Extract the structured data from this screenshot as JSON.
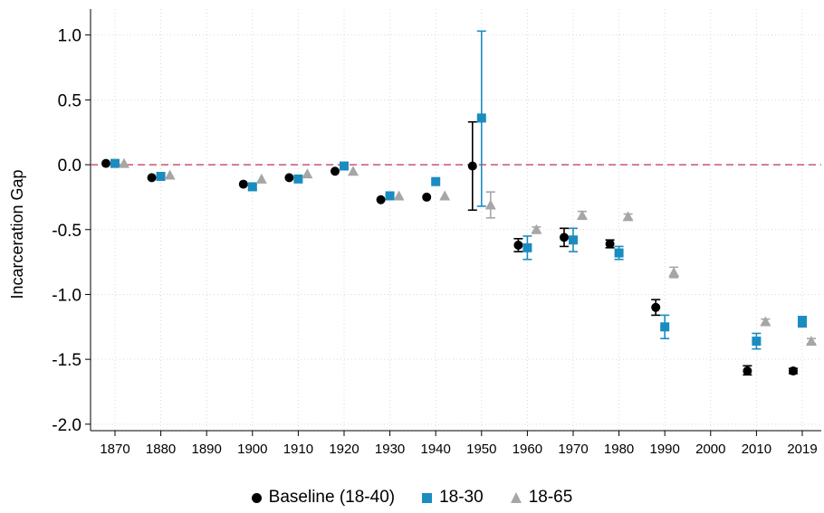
{
  "chart_data": {
    "type": "scatter",
    "title": "",
    "xlabel": "",
    "ylabel": "Incarceration Gap",
    "ylim": [
      -2.05,
      1.2
    ],
    "yticks": [
      1.0,
      0.5,
      0.0,
      -0.5,
      -1.0,
      -1.5,
      -2.0
    ],
    "ytick_labels": [
      "1.0",
      "0.5",
      "0.0",
      "-0.5",
      "-1.0",
      "-1.5",
      "-2.0"
    ],
    "xticks": [
      1870,
      1880,
      1890,
      1900,
      1910,
      1920,
      1930,
      1940,
      1950,
      1960,
      1970,
      1980,
      1990,
      2000,
      2010,
      2019
    ],
    "xtick_labels": [
      "1870",
      "1880",
      "1890",
      "1900",
      "1910",
      "1920",
      "1930",
      "1940",
      "1950",
      "1960",
      "1970",
      "1980",
      "1990",
      "2000",
      "2010",
      "2019"
    ],
    "grid": true,
    "reference_line": {
      "y": 0.0,
      "style": "dashed",
      "color": "#c0475f"
    },
    "legend_position": "bottom",
    "series": [
      {
        "name": "Baseline (18-40)",
        "marker": "circle",
        "color": "#000000",
        "x": [
          1870,
          1880,
          1900,
          1910,
          1920,
          1930,
          1940,
          1950,
          1960,
          1970,
          1980,
          1990,
          2010,
          2019
        ],
        "y": [
          0.01,
          -0.1,
          -0.15,
          -0.1,
          -0.05,
          -0.27,
          -0.25,
          -0.01,
          -0.62,
          -0.56,
          -0.61,
          -1.1,
          -1.59,
          -1.59
        ],
        "ci_low": [
          0.0,
          -0.11,
          -0.16,
          -0.11,
          -0.06,
          -0.28,
          -0.26,
          -0.35,
          -0.67,
          -0.63,
          -0.64,
          -1.16,
          -1.62,
          -1.61
        ],
        "ci_high": [
          0.02,
          -0.09,
          -0.14,
          -0.09,
          -0.04,
          -0.26,
          -0.24,
          0.33,
          -0.57,
          -0.49,
          -0.58,
          -1.04,
          -1.55,
          -1.57
        ]
      },
      {
        "name": "18-30",
        "marker": "square",
        "color": "#1a8cc0",
        "x": [
          1870,
          1880,
          1900,
          1910,
          1920,
          1930,
          1940,
          1950,
          1960,
          1970,
          1980,
          1990,
          2010,
          2019
        ],
        "y": [
          0.01,
          -0.09,
          -0.17,
          -0.11,
          -0.01,
          -0.24,
          -0.13,
          0.36,
          -0.64,
          -0.58,
          -0.68,
          -1.25,
          -1.36,
          -1.21
        ],
        "ci_low": [
          0.0,
          -0.1,
          -0.19,
          -0.12,
          -0.02,
          -0.25,
          -0.14,
          -0.32,
          -0.73,
          -0.67,
          -0.73,
          -1.34,
          -1.42,
          -1.25
        ],
        "ci_high": [
          0.02,
          -0.08,
          -0.15,
          -0.1,
          0.0,
          -0.23,
          -0.12,
          1.03,
          -0.55,
          -0.49,
          -0.63,
          -1.16,
          -1.3,
          -1.17
        ]
      },
      {
        "name": "18-65",
        "marker": "triangle",
        "color": "#a6a6a6",
        "x": [
          1870,
          1880,
          1900,
          1910,
          1920,
          1930,
          1940,
          1950,
          1960,
          1970,
          1980,
          1990,
          2010,
          2019
        ],
        "y": [
          0.01,
          -0.08,
          -0.11,
          -0.07,
          -0.05,
          -0.24,
          -0.24,
          -0.31,
          -0.5,
          -0.39,
          -0.4,
          -0.83,
          -1.21,
          -1.36
        ],
        "ci_low": [
          0.0,
          -0.09,
          -0.12,
          -0.08,
          -0.06,
          -0.25,
          -0.25,
          -0.41,
          -0.52,
          -0.42,
          -0.42,
          -0.87,
          -1.23,
          -1.38
        ],
        "ci_high": [
          0.02,
          -0.07,
          -0.1,
          -0.06,
          -0.04,
          -0.23,
          -0.23,
          -0.21,
          -0.48,
          -0.36,
          -0.38,
          -0.79,
          -1.19,
          -1.34
        ]
      }
    ]
  }
}
